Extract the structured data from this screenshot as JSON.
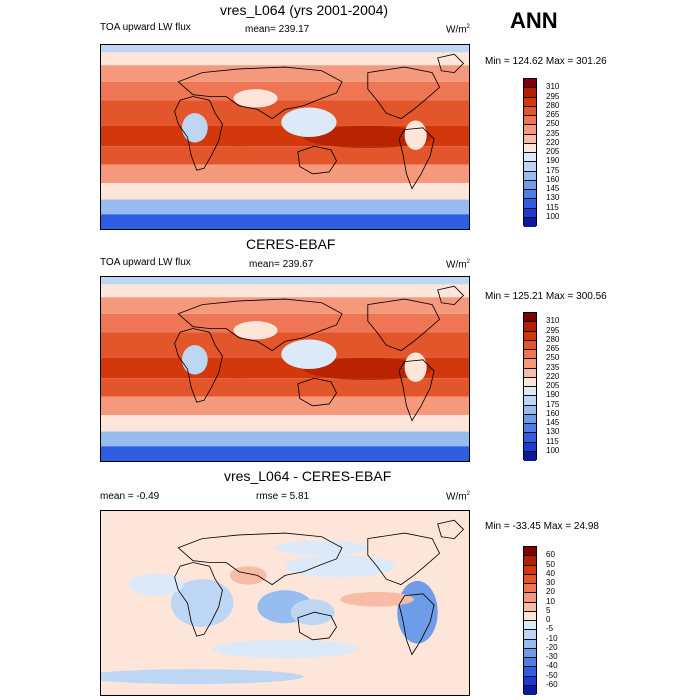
{
  "season": "ANN",
  "panels": [
    {
      "title": "vres_L064 (yrs 2001-2004)",
      "left": "TOA upward LW flux",
      "center": "mean= 239.17",
      "unit": "W/m",
      "unit_sup": "2",
      "minmax": "Min = 124.62 Max = 301.26",
      "colorbar": {
        "labels": [
          "310",
          "295",
          "280",
          "265",
          "250",
          "235",
          "220",
          "205",
          "190",
          "175",
          "160",
          "145",
          "130",
          "115",
          "100"
        ],
        "colors": [
          "#7f0000",
          "#b31e00",
          "#d2380b",
          "#e3562b",
          "#ee7654",
          "#f4997c",
          "#f8bca6",
          "#fde6d9",
          "#dce9f8",
          "#bdd6f3",
          "#97bdef",
          "#6e9ce8",
          "#4d7ee6",
          "#2e5fe3",
          "#1a3bd6",
          "#0d1a9c"
        ]
      }
    },
    {
      "title": "CERES-EBAF",
      "left": "TOA upward LW flux",
      "center": "mean= 239.67",
      "unit": "W/m",
      "unit_sup": "2",
      "minmax": "Min = 125.21 Max = 300.56",
      "colorbar": {
        "labels": [
          "310",
          "295",
          "280",
          "265",
          "250",
          "235",
          "220",
          "205",
          "190",
          "175",
          "160",
          "145",
          "130",
          "115",
          "100"
        ],
        "colors": [
          "#7f0000",
          "#b31e00",
          "#d2380b",
          "#e3562b",
          "#ee7654",
          "#f4997c",
          "#f8bca6",
          "#fde6d9",
          "#dce9f8",
          "#bdd6f3",
          "#97bdef",
          "#6e9ce8",
          "#4d7ee6",
          "#2e5fe3",
          "#1a3bd6",
          "#0d1a9c"
        ]
      }
    },
    {
      "title": "vres_L064 - CERES-EBAF",
      "left": "mean =  -0.49",
      "center": "rmse =   5.81",
      "unit": "W/m",
      "unit_sup": "2",
      "minmax": "Min = -33.45 Max =  24.98",
      "colorbar": {
        "labels": [
          "60",
          "50",
          "40",
          "30",
          "20",
          "10",
          "5",
          "0",
          "-5",
          "-10",
          "-20",
          "-30",
          "-40",
          "-50",
          "-60"
        ],
        "colors": [
          "#7f0000",
          "#b31e00",
          "#d2380b",
          "#e3562b",
          "#ee7654",
          "#f4997c",
          "#f8bca6",
          "#fde6d9",
          "#dce9f8",
          "#bdd6f3",
          "#97bdef",
          "#6e9ce8",
          "#4d7ee6",
          "#2e5fe3",
          "#1a3bd6",
          "#0d1a9c"
        ]
      }
    }
  ],
  "chart_data": [
    {
      "type": "heatmap",
      "title": "vres_L064 (yrs 2001-2004)",
      "variable": "TOA upward LW flux",
      "units": "W/m2",
      "mean": 239.17,
      "min": 124.62,
      "max": 301.26,
      "contour_levels": [
        100,
        115,
        130,
        145,
        160,
        175,
        190,
        205,
        220,
        235,
        250,
        265,
        280,
        295,
        310
      ]
    },
    {
      "type": "heatmap",
      "title": "CERES-EBAF",
      "variable": "TOA upward LW flux",
      "units": "W/m2",
      "mean": 239.67,
      "min": 125.21,
      "max": 300.56,
      "contour_levels": [
        100,
        115,
        130,
        145,
        160,
        175,
        190,
        205,
        220,
        235,
        250,
        265,
        280,
        295,
        310
      ]
    },
    {
      "type": "heatmap",
      "title": "vres_L064 - CERES-EBAF",
      "units": "W/m2",
      "mean": -0.49,
      "rmse": 5.81,
      "min": -33.45,
      "max": 24.98,
      "contour_levels": [
        -60,
        -50,
        -40,
        -30,
        -20,
        -10,
        -5,
        0,
        5,
        10,
        20,
        30,
        40,
        50,
        60
      ]
    }
  ]
}
